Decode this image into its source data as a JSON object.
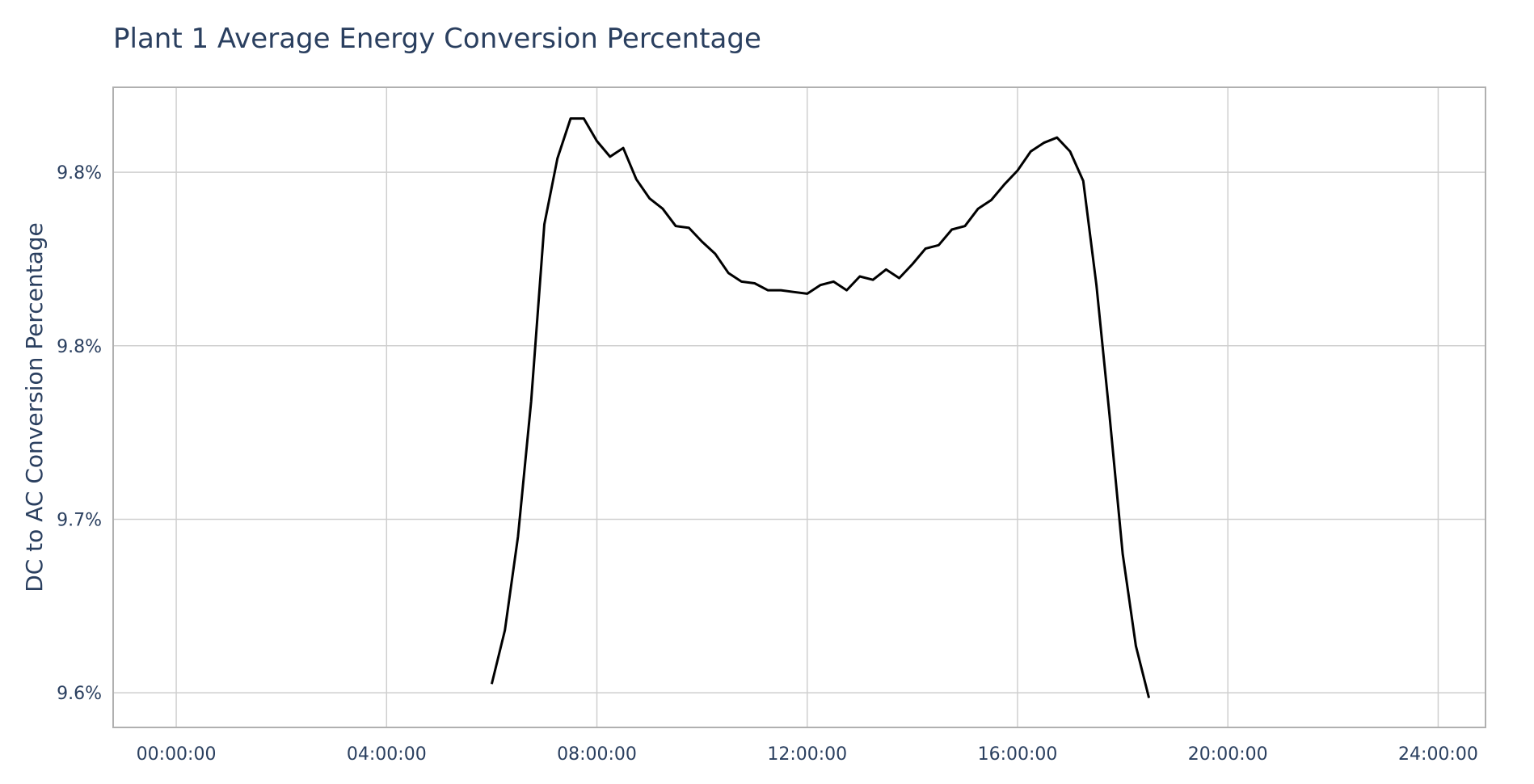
{
  "chart_data": {
    "type": "line",
    "title": "Plant 1 Average Energy Conversion Percentage",
    "xlabel": "",
    "ylabel": "DC to AC Conversion Percentage",
    "x_tick_labels": [
      "00:00:00",
      "04:00:00",
      "08:00:00",
      "12:00:00",
      "16:00:00",
      "20:00:00",
      "24:00:00"
    ],
    "y_tick_labels": [
      "9.6%",
      "9.7%",
      "9.8%",
      "9.8%"
    ],
    "x_range_hours": [
      -1.2,
      24.9
    ],
    "y_range": [
      9.58,
      9.949
    ],
    "grid": true,
    "legend": "none",
    "line_color": "#000000",
    "series": [
      {
        "x": [
          6.0,
          6.25,
          6.5,
          6.75,
          7.0,
          7.25,
          7.5,
          7.75,
          8.0,
          8.25,
          8.5,
          8.75,
          9.0,
          9.25,
          9.5,
          9.75,
          10.0,
          10.25,
          10.5,
          10.75,
          11.0,
          11.25,
          11.5,
          11.75,
          12.0,
          12.25,
          12.5,
          12.75,
          13.0,
          13.25,
          13.5,
          13.75,
          14.0,
          14.25,
          14.5,
          14.75,
          15.0,
          15.25,
          15.5,
          15.75,
          16.0,
          16.25,
          16.5,
          16.75,
          17.0,
          17.25,
          17.5,
          17.75,
          18.0,
          18.25,
          18.5
        ],
        "y": [
          9.605,
          9.636,
          9.69,
          9.768,
          9.87,
          9.908,
          9.931,
          9.931,
          9.918,
          9.909,
          9.914,
          9.896,
          9.885,
          9.879,
          9.869,
          9.868,
          9.86,
          9.853,
          9.842,
          9.837,
          9.836,
          9.832,
          9.832,
          9.831,
          9.83,
          9.835,
          9.837,
          9.832,
          9.84,
          9.838,
          9.844,
          9.839,
          9.847,
          9.856,
          9.858,
          9.867,
          9.869,
          9.879,
          9.884,
          9.893,
          9.901,
          9.912,
          9.917,
          9.92,
          9.912,
          9.895,
          9.835,
          9.76,
          9.68,
          9.627,
          9.597
        ]
      }
    ]
  }
}
